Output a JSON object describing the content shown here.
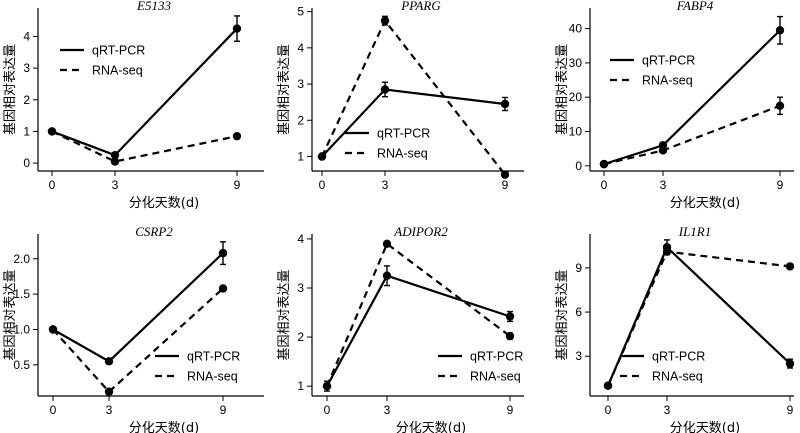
{
  "chart_data": [
    {
      "type": "line",
      "title": "E5133",
      "xlabel": "分化天数(d)",
      "ylabel": "基因相对表达量",
      "x": [
        0,
        3,
        9
      ],
      "xticks": [
        0,
        3,
        9
      ],
      "ylim": [
        -0.25,
        4.9
      ],
      "yticks": [
        0,
        1,
        2,
        3,
        4
      ],
      "legend": "upper-left",
      "series": [
        {
          "name": "qRT-PCR",
          "style": "solid",
          "values": [
            1.0,
            0.25,
            4.25
          ],
          "errors": [
            0.03,
            0.05,
            0.4
          ]
        },
        {
          "name": "RNA-seq",
          "style": "dashed",
          "values": [
            1.0,
            0.05,
            0.85
          ],
          "errors": [
            0,
            0,
            0
          ]
        }
      ]
    },
    {
      "type": "line",
      "title": "PPARG",
      "xlabel": "",
      "ylabel": "基因相对表达量",
      "x": [
        0,
        3,
        9
      ],
      "xticks": [
        0,
        3,
        9
      ],
      "ylim": [
        0.6,
        5.1
      ],
      "yticks": [
        1,
        2,
        3,
        4,
        5
      ],
      "legend": "lower-center",
      "series": [
        {
          "name": "qRT-PCR",
          "style": "solid",
          "values": [
            1.0,
            2.85,
            2.45
          ],
          "errors": [
            0.05,
            0.2,
            0.18
          ]
        },
        {
          "name": "RNA-seq",
          "style": "dashed",
          "values": [
            1.0,
            4.75,
            0.5
          ],
          "errors": [
            0,
            0.12,
            0
          ]
        }
      ]
    },
    {
      "type": "line",
      "title": "FABP4",
      "xlabel": "分化天数(d)",
      "ylabel": "基因相对表达量",
      "x": [
        0,
        3,
        9
      ],
      "xticks": [
        0,
        3,
        9
      ],
      "ylim": [
        -1.5,
        46
      ],
      "yticks": [
        0,
        10,
        20,
        30,
        40
      ],
      "legend": "upper-left",
      "series": [
        {
          "name": "qRT-PCR",
          "style": "solid",
          "values": [
            0.5,
            6.0,
            39.5
          ],
          "errors": [
            0.2,
            0.8,
            4.0
          ]
        },
        {
          "name": "RNA-seq",
          "style": "dashed",
          "values": [
            0.5,
            4.5,
            17.5
          ],
          "errors": [
            0,
            0.5,
            2.5
          ]
        }
      ]
    },
    {
      "type": "line",
      "title": "CSRP2",
      "xlabel": "分化天数(d)",
      "ylabel": "基因相对表达量",
      "x": [
        0,
        3,
        9
      ],
      "xticks": [
        0,
        3,
        9
      ],
      "ylim": [
        0.06,
        2.35
      ],
      "yticks": [
        0.5,
        1.0,
        1.5,
        2.0
      ],
      "ytick_labels": [
        "0.5",
        "1.0",
        "1.5",
        "2.0"
      ],
      "legend": "lower-right",
      "series": [
        {
          "name": "qRT-PCR",
          "style": "solid",
          "values": [
            1.0,
            0.55,
            2.08
          ],
          "errors": [
            0.03,
            0.02,
            0.16
          ]
        },
        {
          "name": "RNA-seq",
          "style": "dashed",
          "values": [
            1.0,
            0.12,
            1.58
          ],
          "errors": [
            0,
            0,
            0
          ]
        }
      ]
    },
    {
      "type": "line",
      "title": "ADIPOR2",
      "xlabel": "分化天数(d)",
      "ylabel": "基因相对表达量",
      "x": [
        0,
        3,
        9
      ],
      "xticks": [
        0,
        3,
        9
      ],
      "ylim": [
        0.8,
        4.1
      ],
      "yticks": [
        1,
        2,
        3,
        4
      ],
      "legend": "lower-right",
      "series": [
        {
          "name": "qRT-PCR",
          "style": "solid",
          "values": [
            1.0,
            3.25,
            2.42
          ],
          "errors": [
            0.1,
            0.2,
            0.1
          ]
        },
        {
          "name": "RNA-seq",
          "style": "dashed",
          "values": [
            1.0,
            3.9,
            2.02
          ],
          "errors": [
            0,
            0,
            0.06
          ]
        }
      ]
    },
    {
      "type": "line",
      "title": "IL1R1",
      "xlabel": "分化天数(d)",
      "ylabel": "基因相对表达量",
      "x": [
        0,
        3,
        9
      ],
      "xticks": [
        0,
        3,
        9
      ],
      "ylim": [
        0.3,
        11.3
      ],
      "yticks": [
        3,
        6,
        9
      ],
      "legend": "lower-right",
      "series": [
        {
          "name": "qRT-PCR",
          "style": "solid",
          "values": [
            1.0,
            10.4,
            2.5
          ],
          "errors": [
            0.05,
            0.5,
            0.3
          ]
        },
        {
          "name": "RNA-seq",
          "style": "dashed",
          "values": [
            1.0,
            10.1,
            9.1
          ],
          "errors": [
            0,
            0,
            0
          ]
        }
      ]
    }
  ]
}
